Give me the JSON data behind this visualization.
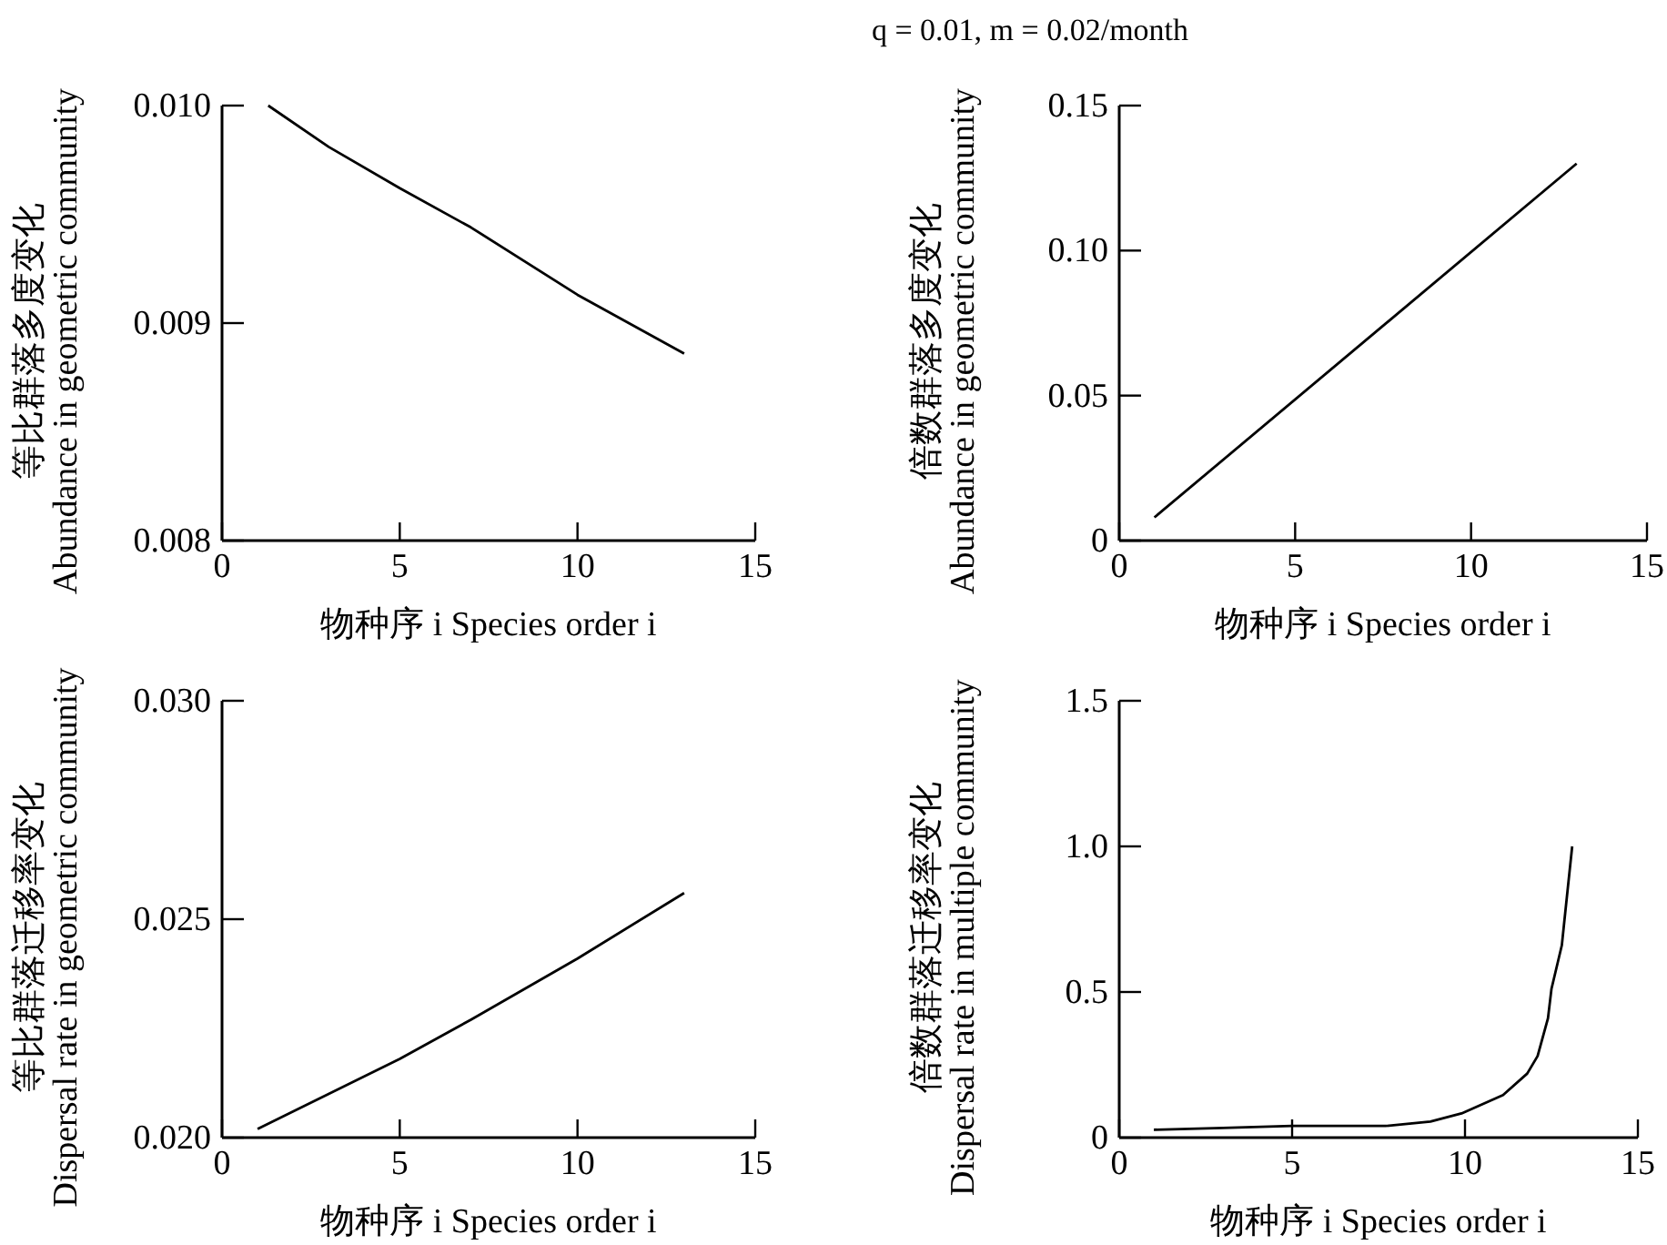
{
  "chart_data": [
    {
      "type": "line",
      "annotations": [
        "q = 0.01,  m = 0.02/month"
      ],
      "xlabel": "物种序 i  Species order i",
      "ylabel": "等比群落多度变化\nAbundance in geometric community",
      "xlim": [
        0,
        15
      ],
      "ylim": [
        0.008,
        0.01
      ],
      "xticks": [
        0,
        5,
        10,
        15
      ],
      "yticks": [
        {
          "value": 0.008,
          "label": "0.008"
        },
        {
          "value": 0.009,
          "label": "0.009"
        },
        {
          "value": 0.01,
          "label": "0.010"
        }
      ],
      "series": [
        {
          "color": "#000000",
          "x": [
            1.3,
            3,
            5,
            7,
            10,
            13
          ],
          "values": [
            0.01,
            0.00981,
            0.00962,
            0.00944,
            0.00913,
            0.00886
          ]
        }
      ]
    },
    {
      "type": "line",
      "xlabel": "物种序 i  Species order i",
      "ylabel": "倍数群落多度变化\nAbundance in geometric community",
      "xlim": [
        0,
        15
      ],
      "ylim": [
        0,
        0.15
      ],
      "xticks": [
        0,
        5,
        10,
        15
      ],
      "yticks": [
        0,
        0.05,
        {
          "value": 0.1,
          "label": "0.10"
        },
        0.15
      ],
      "series": [
        {
          "color": "#000000",
          "x": [
            1,
            13
          ],
          "values": [
            0.008,
            0.13
          ]
        }
      ]
    },
    {
      "type": "line",
      "xlabel": "物种序 i  Species order i",
      "ylabel": "等比群落迁移率变化\nDispersal rate in geometric community",
      "xlim": [
        0,
        15
      ],
      "ylim": [
        0.02,
        0.03
      ],
      "xticks": [
        0,
        5,
        10,
        15
      ],
      "yticks": [
        {
          "value": 0.02,
          "label": "0.020"
        },
        {
          "value": 0.025,
          "label": "0.025"
        },
        {
          "value": 0.03,
          "label": "0.030"
        }
      ],
      "series": [
        {
          "color": "#000000",
          "x": [
            1,
            3,
            5,
            7,
            10,
            13
          ],
          "values": [
            0.0202,
            0.021,
            0.0218,
            0.0227,
            0.0241,
            0.0256
          ]
        }
      ]
    },
    {
      "type": "line",
      "xlabel": "物种序 i  Species order i",
      "ylabel": "倍数群落迁移率变化\nDispersal rate in multiple community",
      "xlim": [
        0,
        15
      ],
      "ylim": [
        0,
        1.5
      ],
      "xticks": [
        0,
        5,
        10,
        15
      ],
      "yticks": [
        0,
        0.5,
        {
          "value": 1,
          "label": "1.0"
        },
        1.5
      ],
      "series": [
        {
          "color": "#000000",
          "x": [
            1,
            3,
            5,
            7.7,
            9,
            9.9,
            11.1,
            11.8,
            12.1,
            12.4,
            12.5,
            12.8,
            13.1
          ],
          "values": [
            0.027,
            0.033,
            0.04,
            0.04,
            0.055,
            0.083,
            0.146,
            0.22,
            0.28,
            0.41,
            0.51,
            0.66,
            1.0
          ]
        }
      ]
    }
  ]
}
